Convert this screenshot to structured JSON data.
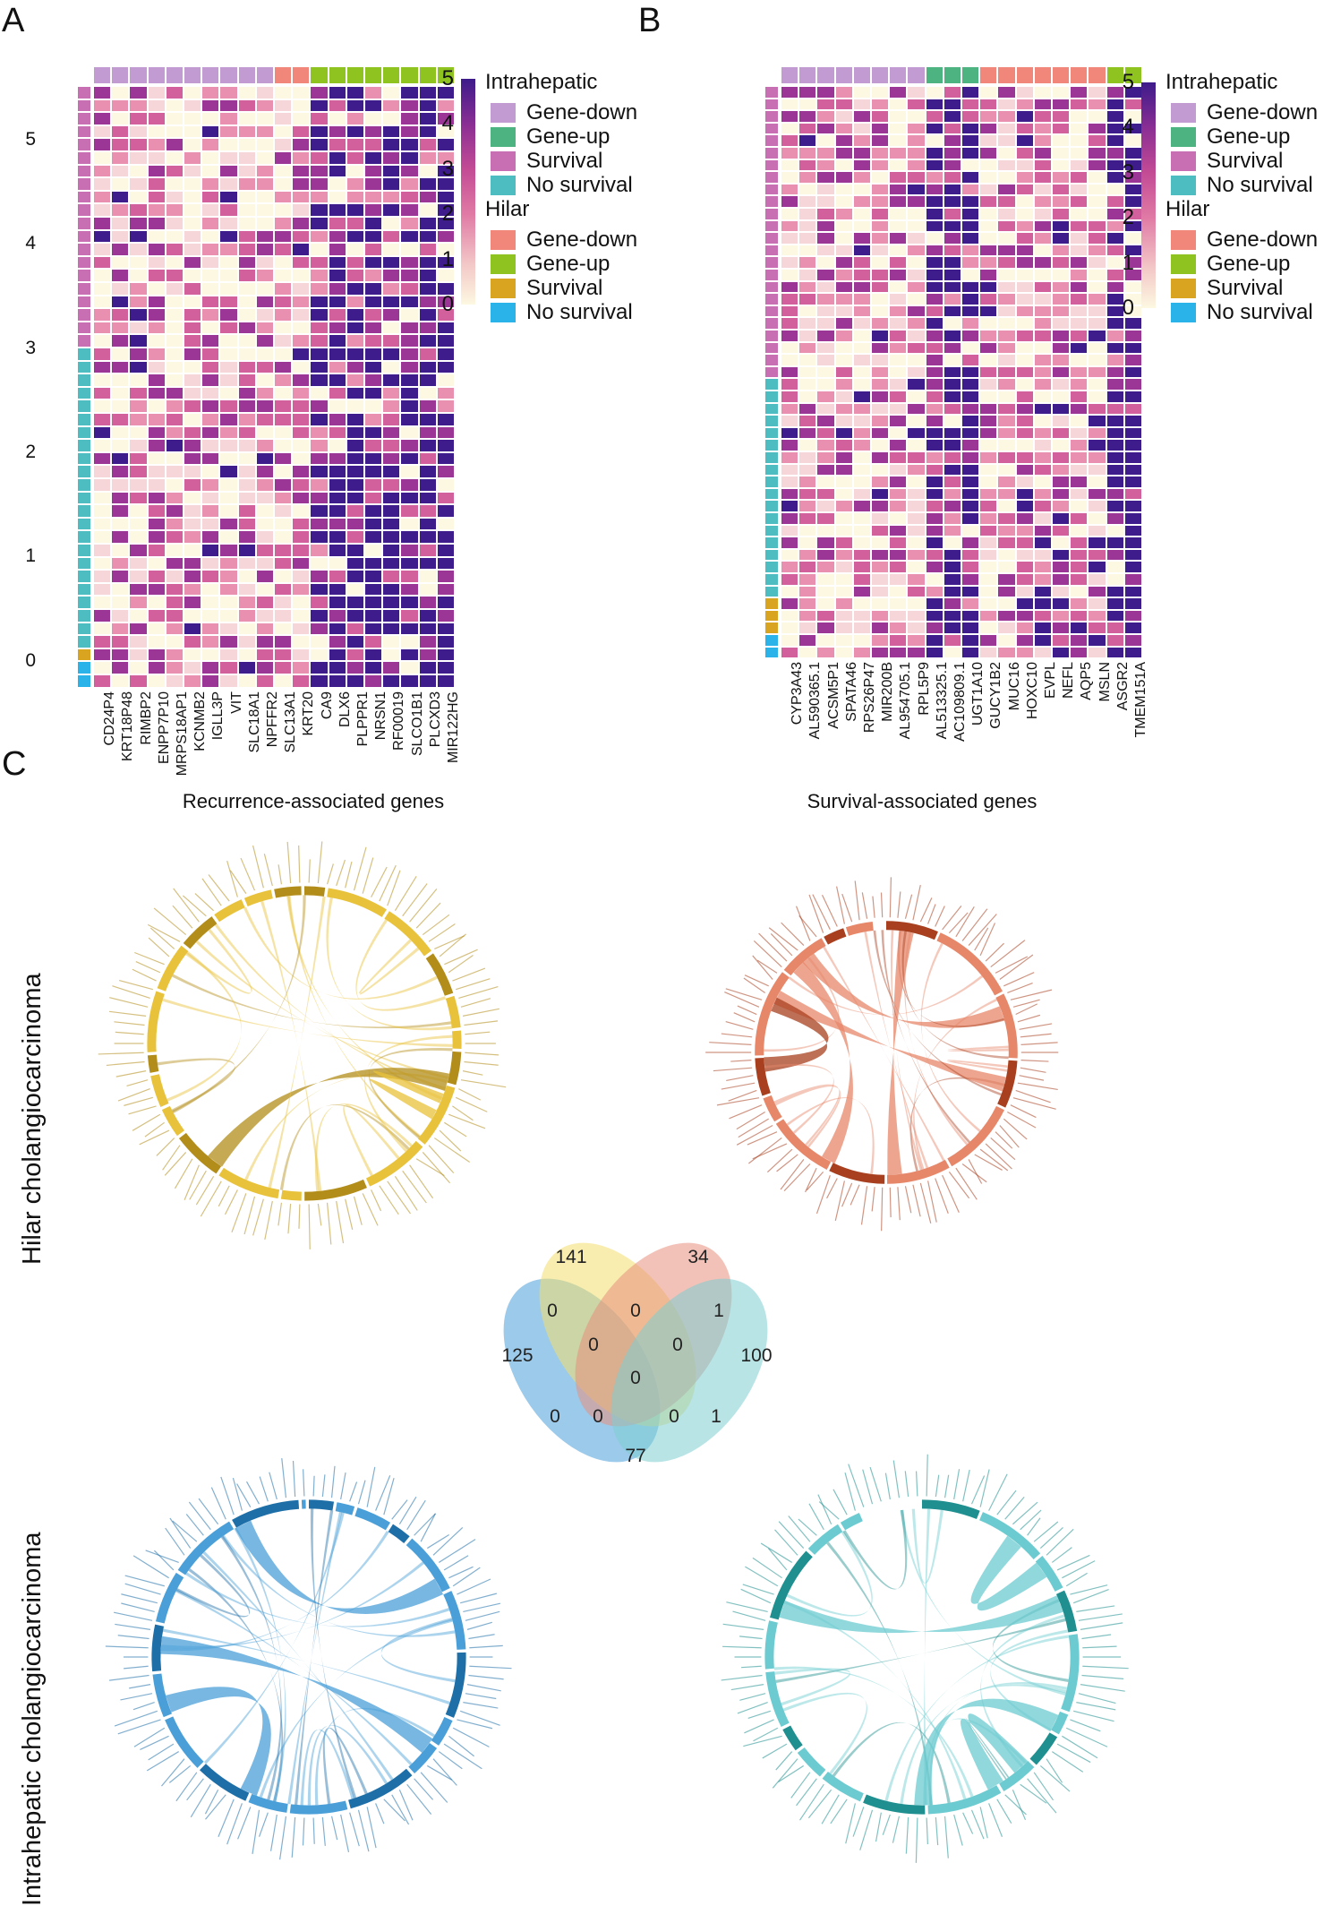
{
  "panels": {
    "A": {
      "letter": "A",
      "genes": [
        "CD24P4",
        "KRT18P48",
        "RIMBP2",
        "ENPP7P10",
        "MRPS18AP1",
        "KCNMB2",
        "IGLL3P",
        "VIT",
        "SLC18A1",
        "NPFFR2",
        "SLC13A1",
        "KRT20",
        "CA9",
        "DLX6",
        "PLPPR1",
        "NRSN1",
        "RF00019",
        "SLCO1B1",
        "PLCXD3",
        "MIR122HG"
      ],
      "y_ticks": [
        "5",
        "4",
        "3",
        "2",
        "1",
        "0"
      ],
      "col_groups": [
        "id",
        "id",
        "id",
        "id",
        "id",
        "id",
        "id",
        "id",
        "id",
        "id",
        "hd",
        "hd",
        "hu",
        "hu",
        "hu",
        "hu",
        "hu",
        "hu",
        "hu",
        "hu"
      ],
      "row_groups": [
        "is",
        "is",
        "is",
        "is",
        "is",
        "is",
        "is",
        "is",
        "is",
        "is",
        "is",
        "is",
        "is",
        "is",
        "is",
        "is",
        "is",
        "is",
        "is",
        "is",
        "in",
        "in",
        "in",
        "in",
        "in",
        "in",
        "in",
        "in",
        "in",
        "in",
        "in",
        "in",
        "in",
        "in",
        "in",
        "in",
        "in",
        "in",
        "in",
        "in",
        "in",
        "in",
        "in",
        "hs",
        "hn",
        "hn"
      ]
    },
    "B": {
      "letter": "B",
      "genes": [
        "CYP3A43",
        "AL590365.1",
        "ACSM5P1",
        "SPATA46",
        "RPS26P47",
        "MIR200B",
        "AL954705.1",
        "RPL5P9",
        "AL513325.1",
        "AC109809.1",
        "UGT1A10",
        "GUCY1B2",
        "MUC16",
        "HOXC10",
        "EVPL",
        "NEFL",
        "AQP5",
        "MSLN",
        "ASGR2",
        "TMEM151A"
      ],
      "col_groups": [
        "id",
        "id",
        "id",
        "id",
        "id",
        "id",
        "id",
        "id",
        "iu",
        "iu",
        "iu",
        "hd",
        "hd",
        "hd",
        "hd",
        "hd",
        "hd",
        "hd",
        "hu",
        "hu"
      ],
      "row_groups": [
        "is",
        "is",
        "is",
        "is",
        "is",
        "is",
        "is",
        "is",
        "is",
        "is",
        "is",
        "is",
        "is",
        "is",
        "is",
        "is",
        "is",
        "is",
        "is",
        "is",
        "is",
        "is",
        "is",
        "is",
        "in",
        "in",
        "in",
        "in",
        "in",
        "in",
        "in",
        "in",
        "in",
        "in",
        "in",
        "in",
        "in",
        "in",
        "in",
        "in",
        "in",
        "in",
        "hs",
        "hs",
        "hs",
        "hn",
        "hn"
      ]
    },
    "C": {
      "letter": "C"
    }
  },
  "colorbar": {
    "labels": [
      "5",
      "4",
      "3",
      "2",
      "1",
      "0"
    ]
  },
  "legend": {
    "intrahepatic_title": "Intrahepatic",
    "hilar_title": "Hilar",
    "intrahepatic_items": [
      {
        "label": "Gene-down",
        "color": "#c39bd3"
      },
      {
        "label": "Gene-up",
        "color": "#4db380"
      },
      {
        "label": "Survival",
        "color": "#c86fb4"
      },
      {
        "label": "No survival",
        "color": "#4dbdc2"
      }
    ],
    "hilar_items": [
      {
        "label": "Gene-down",
        "color": "#f0877a"
      },
      {
        "label": "Gene-up",
        "color": "#8fc31f"
      },
      {
        "label": "Survival",
        "color": "#d9a520"
      },
      {
        "label": "No survival",
        "color": "#29b3e8"
      }
    ]
  },
  "section_titles": {
    "left": "Recurrence-associated genes",
    "right": "Survival-associated genes"
  },
  "row_labels": {
    "top": "Hilar cholangiocarcinoma",
    "bottom": "Intrahepatic cholangiocarcinoma"
  },
  "venn": {
    "regions": [
      {
        "id": "a_only",
        "value": "125"
      },
      {
        "id": "b_only",
        "value": "141"
      },
      {
        "id": "c_only",
        "value": "34"
      },
      {
        "id": "d_only",
        "value": "100"
      },
      {
        "id": "ab",
        "value": "0"
      },
      {
        "id": "bc",
        "value": "0"
      },
      {
        "id": "cd",
        "value": "1"
      },
      {
        "id": "bd_center_left",
        "value": "0"
      },
      {
        "id": "ac_center_right",
        "value": "0"
      },
      {
        "id": "center",
        "value": "0"
      },
      {
        "id": "a_d_low",
        "value": "0"
      },
      {
        "id": "lower_mid_left",
        "value": "0"
      },
      {
        "id": "lower_mid_right",
        "value": "0"
      },
      {
        "id": "d_c_low",
        "value": "1"
      },
      {
        "id": "ad",
        "value": "77"
      }
    ],
    "colors": [
      "#4a9fd8",
      "#f2df6b",
      "#e8907e",
      "#7ecdd2"
    ]
  },
  "chords": {
    "hilar_recurrence": {
      "color": "#e8c23a",
      "dark": "#b38d1a"
    },
    "hilar_survival": {
      "color": "#e7876a",
      "dark": "#a8401f"
    },
    "intra_recurrence": {
      "color": "#4a9fd8",
      "dark": "#1e6fa8"
    },
    "intra_survival": {
      "color": "#6ccbd0",
      "dark": "#1f8f8f"
    }
  }
}
